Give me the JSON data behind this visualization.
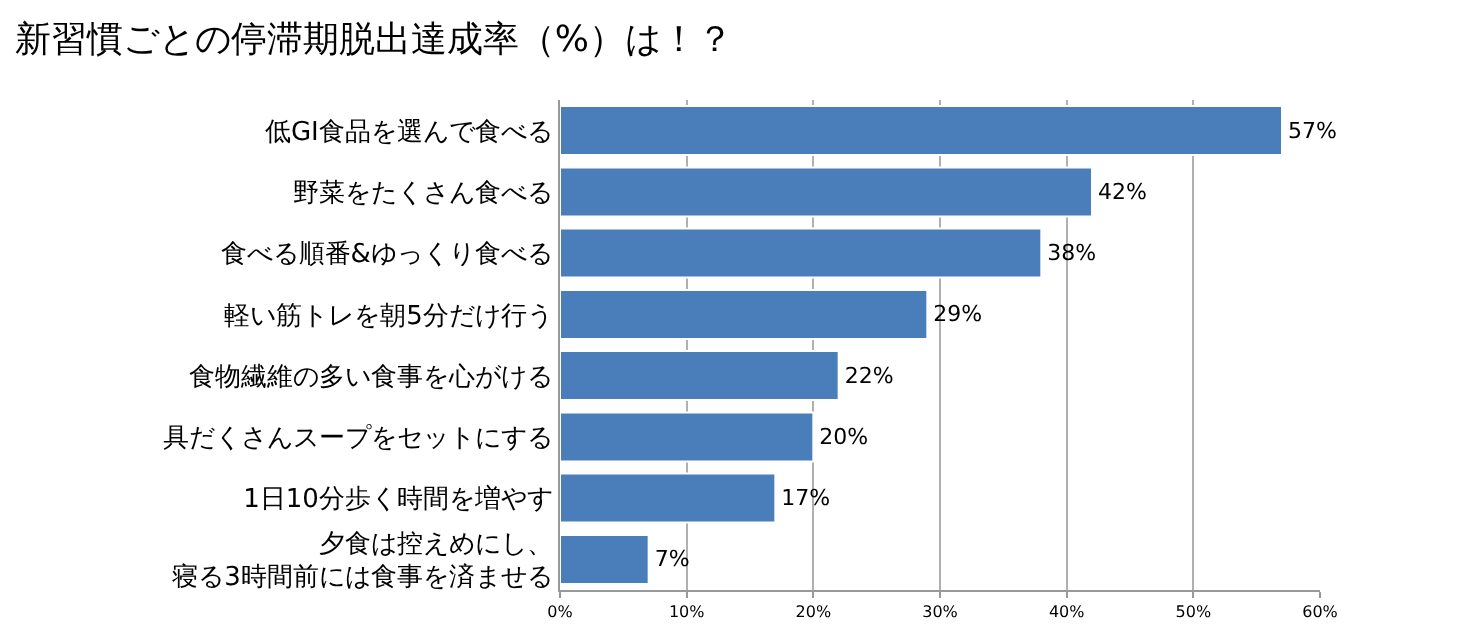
{
  "chart_data": {
    "type": "bar",
    "orientation": "horizontal",
    "title": "新習慣ごとの停滞期脱出達成率（%）は！？",
    "categories": [
      "低GI食品を選んで食べる",
      "野菜をたくさん食べる",
      "食べる順番&ゆっくり食べる",
      "軽い筋トレを朝5分だけ行う",
      "食物繊維の多い食事を心がける",
      "具だくさんスープをセットにする",
      "1日10分歩く時間を増やす",
      "夕食は控えめにし、寝る3時間前には食事を済ませる"
    ],
    "values": [
      57,
      42,
      38,
      29,
      22,
      20,
      17,
      7
    ],
    "value_labels": [
      "57%",
      "42%",
      "38%",
      "29%",
      "22%",
      "20%",
      "17%",
      "7%"
    ],
    "color": "#4a7ebb",
    "xlim": [
      0,
      60
    ],
    "xticks": [
      {
        "value": 0,
        "label": "0%"
      },
      {
        "value": 10,
        "label": "10%"
      },
      {
        "value": 20,
        "label": "20%"
      },
      {
        "value": 30,
        "label": "30%"
      },
      {
        "value": 40,
        "label": "40%"
      },
      {
        "value": 50,
        "label": "50%"
      },
      {
        "value": 60,
        "label": "60%"
      }
    ],
    "grid": "x"
  }
}
